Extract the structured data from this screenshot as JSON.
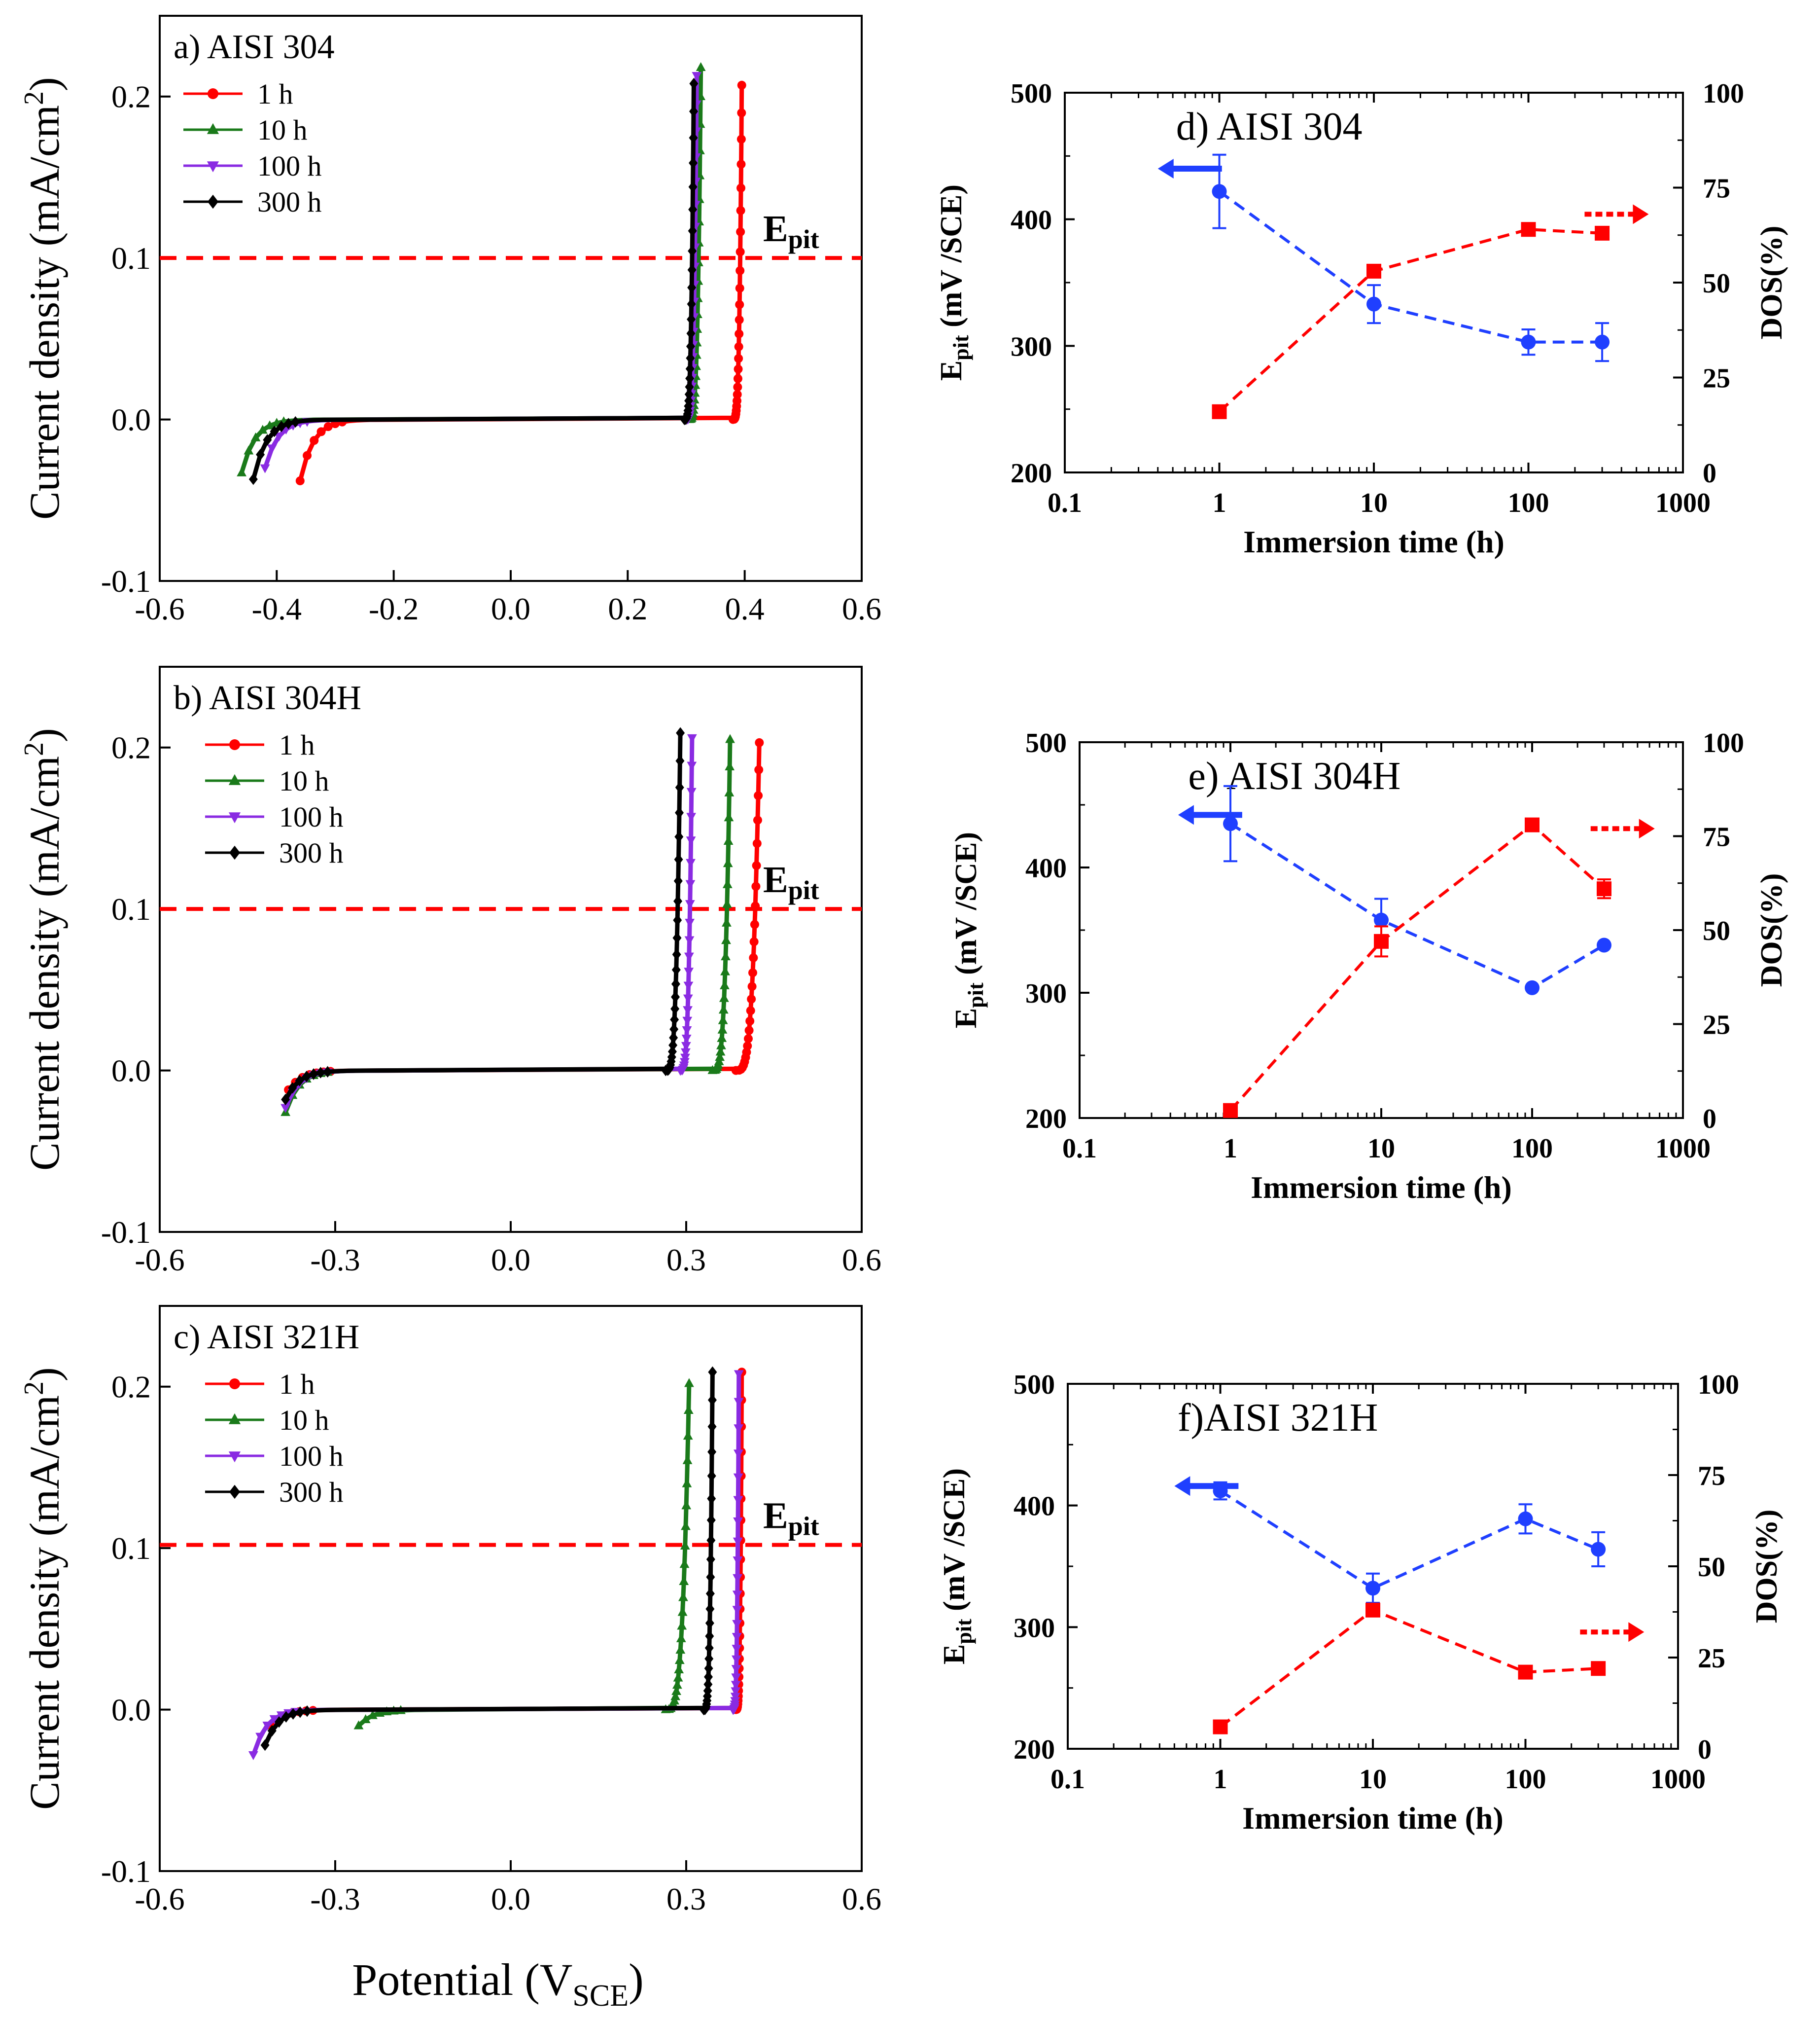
{
  "figure": {
    "shared_xlabel": "Potential (V",
    "shared_xlabel_sub": "SCE",
    "shared_xlabel_close": ")"
  },
  "colors": {
    "red": "#ff0000",
    "green": "#1a7a1a",
    "purple": "#8a2be2",
    "black": "#000000",
    "blue": "#1f3fff"
  },
  "chart_data": [
    {
      "id": "a",
      "type": "line",
      "panel_label": "a) AISI 304",
      "ylabel": "Current density (mA/cm",
      "ylabel_sup": "2",
      "ylabel_close": ")",
      "xlabel": "",
      "xlim": [
        -0.6,
        0.6
      ],
      "ylim": [
        -0.1,
        0.25
      ],
      "xticks": [
        -0.6,
        -0.4,
        -0.2,
        0.0,
        0.2,
        0.4,
        0.6
      ],
      "xtick_labels": [
        "-0.6",
        "-0.4",
        "-0.2",
        "0.0",
        "0.2",
        "0.4",
        "0.6"
      ],
      "yticks": [
        -0.1,
        0.0,
        0.1,
        0.2
      ],
      "ytick_labels": [
        "-0.1",
        "0.0",
        "0.1",
        "0.2"
      ],
      "epit_label": "E",
      "epit_sub": "pit",
      "epit_value": 0.1,
      "legend_position": "top-left",
      "series": [
        {
          "name": "1 h",
          "color": "red",
          "marker": "circle",
          "start": -0.36,
          "start_i": -0.038,
          "break": 0.38,
          "end": 0.395,
          "top": 0.207
        },
        {
          "name": "10 h",
          "color": "green",
          "marker": "triangle-up",
          "start": -0.46,
          "start_i": -0.033,
          "break": 0.305,
          "end": 0.325,
          "top": 0.218
        },
        {
          "name": "100 h",
          "color": "purple",
          "marker": "triangle-down",
          "start": -0.42,
          "start_i": -0.03,
          "break": 0.3,
          "end": 0.318,
          "top": 0.213
        },
        {
          "name": "300 h",
          "color": "black",
          "marker": "diamond",
          "start": -0.44,
          "start_i": -0.037,
          "break": 0.297,
          "end": 0.313,
          "top": 0.208
        }
      ]
    },
    {
      "id": "b",
      "type": "line",
      "panel_label": "b) AISI 304H",
      "ylabel": "Current density (mA/cm",
      "ylabel_sup": "2",
      "ylabel_close": ")",
      "xlabel": "",
      "xlim": [
        -0.6,
        0.6
      ],
      "ylim": [
        -0.1,
        0.25
      ],
      "xticks": [
        -0.6,
        -0.3,
        0.0,
        0.3,
        0.6
      ],
      "xtick_labels": [
        "-0.6",
        "-0.3",
        "0.0",
        "0.3",
        "0.6"
      ],
      "yticks": [
        -0.1,
        0.0,
        0.1,
        0.2
      ],
      "ytick_labels": [
        "-0.1",
        "0.0",
        "0.1",
        "0.2"
      ],
      "epit_label": "E",
      "epit_sub": "pit",
      "epit_value": 0.1,
      "legend_position": "top-left",
      "series": [
        {
          "name": "1 h",
          "color": "red",
          "marker": "circle",
          "start": -0.38,
          "start_i": -0.012,
          "break": 0.385,
          "end": 0.425,
          "top": 0.203
        },
        {
          "name": "10 h",
          "color": "green",
          "marker": "triangle-up",
          "start": -0.385,
          "start_i": -0.026,
          "break": 0.345,
          "end": 0.375,
          "top": 0.205
        },
        {
          "name": "100 h",
          "color": "purple",
          "marker": "triangle-down",
          "start": -0.385,
          "start_i": -0.023,
          "break": 0.29,
          "end": 0.31,
          "top": 0.206
        },
        {
          "name": "300 h",
          "color": "black",
          "marker": "diamond",
          "start": -0.385,
          "start_i": -0.018,
          "break": 0.265,
          "end": 0.29,
          "top": 0.209
        }
      ]
    },
    {
      "id": "c",
      "type": "line",
      "panel_label": "c) AISI 321H",
      "ylabel": "Current density (mA/cm",
      "ylabel_sup": "2",
      "ylabel_close": ")",
      "xlabel": "",
      "xlim": [
        -0.6,
        0.6
      ],
      "ylim": [
        -0.1,
        0.25
      ],
      "xticks": [
        -0.6,
        -0.3,
        0.0,
        0.3,
        0.6
      ],
      "xtick_labels": [
        "-0.6",
        "-0.3",
        "0.0",
        "0.3",
        "0.6"
      ],
      "yticks": [
        -0.1,
        0.0,
        0.1,
        0.2
      ],
      "ytick_labels": [
        "-0.1",
        "0.0",
        "0.1",
        "0.2"
      ],
      "epit_label": "E",
      "epit_sub": "pit",
      "epit_value": 0.102,
      "legend_position": "top-left",
      "series": [
        {
          "name": "1 h",
          "color": "red",
          "marker": "circle",
          "start": -0.41,
          "start_i": -0.01,
          "break": 0.385,
          "end": 0.395,
          "top": 0.209
        },
        {
          "name": "10 h",
          "color": "green",
          "marker": "triangle-up",
          "start": -0.26,
          "start_i": -0.01,
          "break": 0.265,
          "end": 0.305,
          "top": 0.202
        },
        {
          "name": "100 h",
          "color": "purple",
          "marker": "triangle-down",
          "start": -0.44,
          "start_i": -0.028,
          "break": 0.38,
          "end": 0.39,
          "top": 0.208
        },
        {
          "name": "300 h",
          "color": "black",
          "marker": "diamond",
          "start": -0.42,
          "start_i": -0.022,
          "break": 0.33,
          "end": 0.345,
          "top": 0.209
        }
      ]
    },
    {
      "id": "d",
      "type": "line",
      "panel_label": "d) AISI 304",
      "xlabel": "Immersion time (h)",
      "ylabel": "E",
      "ylabel_sub": "pit",
      "ylabel_rest": " (mV /SCE)",
      "y2label": "DOS(%)",
      "xscale": "log",
      "xlim": [
        0.1,
        1000
      ],
      "ylim": [
        200,
        500
      ],
      "y2lim": [
        0,
        100
      ],
      "xticks": [
        0.1,
        1,
        10,
        100,
        1000
      ],
      "xtick_labels": [
        "0.1",
        "1",
        "10",
        "100",
        "1000"
      ],
      "yticks": [
        200,
        300,
        400,
        500
      ],
      "ytick_labels": [
        "200",
        "300",
        "400",
        "500"
      ],
      "y2ticks": [
        0,
        25,
        50,
        75,
        100
      ],
      "y2tick_labels": [
        "0",
        "25",
        "50",
        "75",
        "100"
      ],
      "x": [
        1,
        10,
        100,
        300
      ],
      "series": [
        {
          "name": "Epit",
          "axis": "left",
          "color": "blue",
          "marker": "circle",
          "values": [
            422,
            333,
            303,
            303
          ],
          "errors": [
            29,
            15,
            10,
            15
          ],
          "arrow": "left",
          "arrow_at": [
            0.4,
            440
          ]
        },
        {
          "name": "DOS",
          "axis": "right",
          "color": "red",
          "marker": "square",
          "values": [
            16,
            53,
            64,
            63
          ],
          "errors": [
            0,
            1.5,
            0.8,
            0.8
          ],
          "arrow": "right",
          "arrow_at": [
            600,
            68
          ]
        }
      ]
    },
    {
      "id": "e",
      "type": "line",
      "panel_label": "e) AISI 304H",
      "xlabel": "Immersion time (h)",
      "ylabel": "E",
      "ylabel_sub": "pit",
      "ylabel_rest": " (mV /SCE)",
      "y2label": "DOS(%)",
      "xscale": "log",
      "xlim": [
        0.1,
        1000
      ],
      "ylim": [
        200,
        500
      ],
      "y2lim": [
        0,
        100
      ],
      "xticks": [
        0.1,
        1,
        10,
        100,
        1000
      ],
      "xtick_labels": [
        "0.1",
        "1",
        "10",
        "100",
        "1000"
      ],
      "yticks": [
        200,
        300,
        400,
        500
      ],
      "ytick_labels": [
        "200",
        "300",
        "400",
        "500"
      ],
      "y2ticks": [
        0,
        25,
        50,
        75,
        100
      ],
      "y2tick_labels": [
        "0",
        "25",
        "50",
        "75",
        "100"
      ],
      "x": [
        1,
        10,
        100,
        300
      ],
      "series": [
        {
          "name": "Epit",
          "axis": "left",
          "color": "blue",
          "marker": "circle",
          "values": [
            435,
            358,
            304,
            338
          ],
          "errors": [
            30,
            17,
            0,
            0
          ],
          "arrow": "left",
          "arrow_at": [
            0.45,
            442
          ]
        },
        {
          "name": "DOS",
          "axis": "right",
          "color": "red",
          "marker": "square",
          "values": [
            2,
            47,
            78,
            61
          ],
          "errors": [
            0,
            4,
            0,
            2.5
          ],
          "arrow": "right",
          "arrow_at": [
            650,
            77
          ]
        }
      ]
    },
    {
      "id": "f",
      "type": "line",
      "panel_label": "f)AISI 321H",
      "xlabel": "Immersion time (h)",
      "ylabel": "E",
      "ylabel_sub": "pit",
      "ylabel_rest": " (mV /SCE)",
      "y2label": "DOS(%)",
      "xscale": "log",
      "xlim": [
        0.1,
        1000
      ],
      "ylim": [
        200,
        500
      ],
      "y2lim": [
        0,
        100
      ],
      "xticks": [
        0.1,
        1,
        10,
        100,
        1000
      ],
      "xtick_labels": [
        "0.1",
        "1",
        "10",
        "100",
        "1000"
      ],
      "yticks": [
        200,
        300,
        400,
        500
      ],
      "ytick_labels": [
        "200",
        "300",
        "400",
        "500"
      ],
      "y2ticks": [
        0,
        25,
        50,
        75,
        100
      ],
      "y2tick_labels": [
        "0",
        "25",
        "50",
        "75",
        "100"
      ],
      "x": [
        1,
        10,
        100,
        300
      ],
      "series": [
        {
          "name": "Epit",
          "axis": "left",
          "color": "blue",
          "marker": "circle",
          "values": [
            412,
            332,
            389,
            364
          ],
          "errors": [
            7,
            12,
            12,
            14
          ],
          "arrow": "left",
          "arrow_at": [
            0.5,
            416
          ]
        },
        {
          "name": "DOS",
          "axis": "right",
          "color": "red",
          "marker": "square",
          "values": [
            6,
            38,
            21,
            22
          ],
          "errors": [
            0,
            0,
            1.5,
            1.2
          ],
          "arrow": "right",
          "arrow_at": [
            600,
            32
          ]
        }
      ]
    }
  ]
}
